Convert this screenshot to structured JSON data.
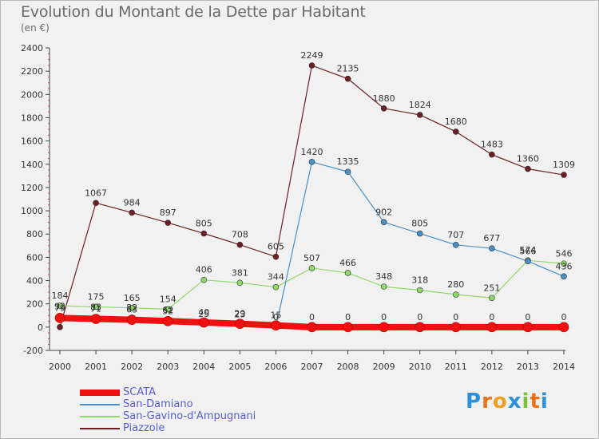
{
  "title": "Evolution du Montant de la Dette par Habitant",
  "subtitle": "(en €)",
  "logo": {
    "text": "Proxiti",
    "letters": [
      "P",
      "r",
      "o",
      "x",
      "i",
      "t",
      "i"
    ],
    "colors": [
      "#2f8fd8",
      "#e8731a",
      "#f0a020",
      "#2f8fd8",
      "#7cc142",
      "#e8731a",
      "#2f8fd8"
    ]
  },
  "chart_data": {
    "type": "line",
    "title": "Evolution du Montant de la Dette par Habitant",
    "subtitle": "(en €)",
    "xlabel": "",
    "ylabel": "",
    "x": [
      "2000",
      "2001",
      "2002",
      "2003",
      "2004",
      "2005",
      "2006",
      "2007",
      "2008",
      "2009",
      "2010",
      "2011",
      "2012",
      "2013",
      "2014"
    ],
    "ylim": [
      -200,
      2400
    ],
    "yticks": [
      "-200",
      "0",
      "200",
      "400",
      "600",
      "800",
      "1000",
      "1200",
      "1400",
      "1600",
      "1800",
      "2000",
      "2200",
      "2400"
    ],
    "grid": false,
    "legend_position": "bottom-left",
    "series": [
      {
        "name": "SCATA",
        "color": "#ee1111",
        "width": 8,
        "marker": 6,
        "values": [
          79,
          71,
          63,
          52,
          40,
          29,
          15,
          0,
          0,
          0,
          0,
          0,
          0,
          0,
          0
        ],
        "labels": [
          "79",
          "71",
          "63",
          "52",
          "40",
          "29",
          "15",
          "0",
          "0",
          "0",
          "0",
          "0",
          "0",
          "0",
          "0"
        ]
      },
      {
        "name": "San-Damiano",
        "color": "#4a90c8",
        "width": 1.2,
        "marker": 3.5,
        "values": [
          92,
          83,
          82,
          62,
          25,
          23,
          0,
          1420,
          1335,
          902,
          805,
          707,
          677,
          566,
          436
        ],
        "labels": [
          "92",
          "83",
          "82",
          "62",
          "25",
          "23",
          "0",
          "1420",
          "1335",
          "902",
          "805",
          "707",
          "677",
          "566",
          "436"
        ]
      },
      {
        "name": "San-Gavino-d'Ampugnani",
        "color": "#90d868",
        "width": 1.2,
        "marker": 3.5,
        "values": [
          184,
          175,
          165,
          154,
          406,
          381,
          344,
          507,
          466,
          348,
          318,
          280,
          251,
          574,
          546
        ],
        "labels": [
          "184",
          "175",
          "165",
          "154",
          "406",
          "381",
          "344",
          "507",
          "466",
          "348",
          "318",
          "280",
          "251",
          "574",
          "546"
        ]
      },
      {
        "name": "Piazzole",
        "color": "#6b1f22",
        "width": 1.2,
        "marker": 3.5,
        "values": [
          0,
          1067,
          984,
          897,
          805,
          708,
          605,
          2249,
          2135,
          1880,
          1824,
          1680,
          1483,
          1360,
          1309
        ],
        "labels": [
          "",
          "1067",
          "984",
          "897",
          "805",
          "708",
          "605",
          "2249",
          "2135",
          "1880",
          "1824",
          "1680",
          "1483",
          "1360",
          "1309"
        ]
      }
    ]
  }
}
